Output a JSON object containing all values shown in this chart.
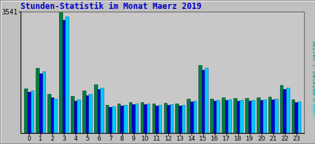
{
  "title": "Stunden-Statistik im Monat Maerz 2019",
  "ylabel_right_1": "Seiten / Dateien / ",
  "ylabel_right_2": "Anfragen",
  "xlabel_labels": [
    "0",
    "1",
    "2",
    "3",
    "4",
    "5",
    "6",
    "7",
    "8",
    "9",
    "10",
    "11",
    "12",
    "13",
    "14",
    "15",
    "16",
    "17",
    "18",
    "19",
    "20",
    "21",
    "22",
    "23"
  ],
  "ytick_label": "3541",
  "ymax": 3541,
  "background_color": "#c0c0c0",
  "plot_bg": "#c8c8c8",
  "title_color": "#0000cc",
  "bar_width": 0.27,
  "colors": {
    "seiten": "#008040",
    "dateien": "#0000cc",
    "anfragen": "#00ccff"
  },
  "seiten": [
    1300,
    1900,
    1150,
    3541,
    1080,
    1250,
    1430,
    820,
    870,
    900,
    900,
    860,
    890,
    870,
    1000,
    1980,
    1000,
    1050,
    1020,
    1020,
    1050,
    1060,
    1400,
    980
  ],
  "dateien": [
    1200,
    1750,
    1050,
    3300,
    950,
    1100,
    1280,
    770,
    810,
    840,
    840,
    800,
    830,
    810,
    930,
    1850,
    940,
    960,
    940,
    950,
    970,
    980,
    1280,
    910
  ],
  "anfragen": [
    1250,
    1800,
    1000,
    3400,
    980,
    1150,
    1320,
    790,
    830,
    860,
    860,
    820,
    850,
    830,
    950,
    1900,
    960,
    980,
    960,
    970,
    990,
    1000,
    1320,
    930
  ]
}
